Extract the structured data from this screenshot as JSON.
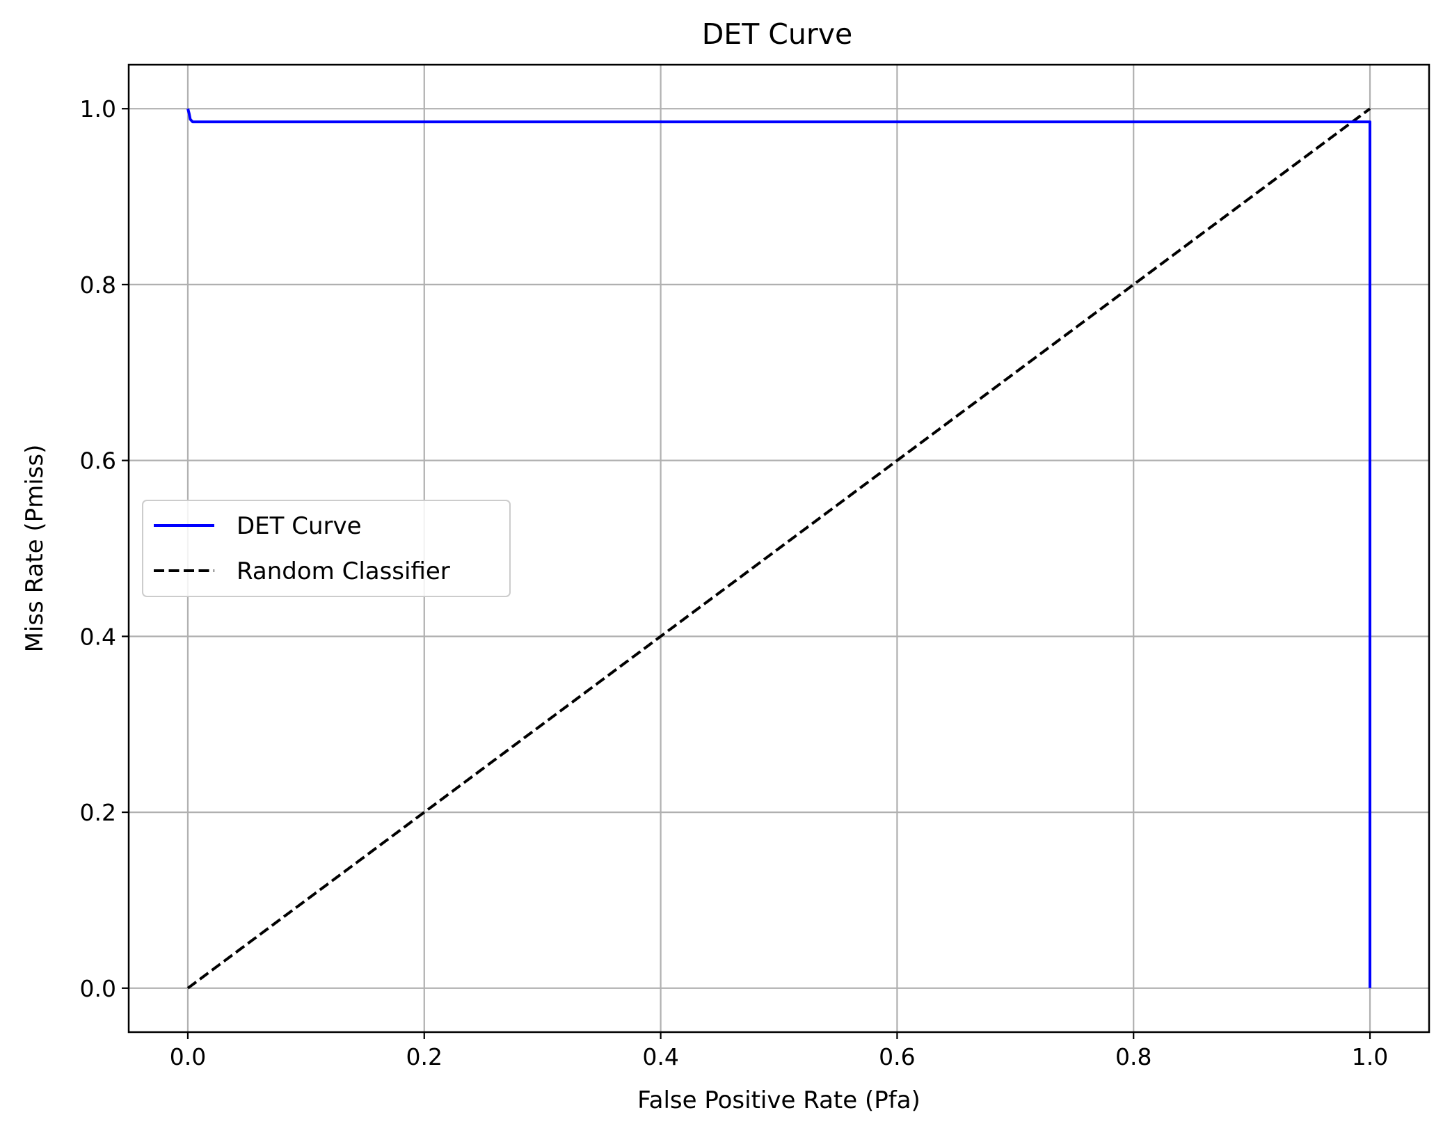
{
  "chart_data": {
    "type": "line",
    "title": "DET Curve",
    "xlabel": "False Positive Rate (Pfa)",
    "ylabel": "Miss Rate (Pmiss)",
    "xlim": [
      -0.05,
      1.05
    ],
    "ylim": [
      -0.05,
      1.05
    ],
    "xticks": [
      0.0,
      0.2,
      0.4,
      0.6,
      0.8,
      1.0
    ],
    "yticks": [
      0.0,
      0.2,
      0.4,
      0.6,
      0.8,
      1.0
    ],
    "xtick_labels": [
      "0.0",
      "0.2",
      "0.4",
      "0.6",
      "0.8",
      "1.0"
    ],
    "ytick_labels": [
      "0.0",
      "0.2",
      "0.4",
      "0.6",
      "0.8",
      "1.0"
    ],
    "grid": true,
    "legend_position": "center-left",
    "series": [
      {
        "name": "DET Curve",
        "color": "#0000ff",
        "style": "solid",
        "x": [
          0.0,
          0.001,
          0.002,
          0.004,
          1.0,
          1.0
        ],
        "y": [
          1.0,
          0.995,
          0.988,
          0.985,
          0.985,
          0.0
        ]
      },
      {
        "name": "Random Classifier",
        "color": "#000000",
        "style": "dashed",
        "x": [
          0.0,
          1.0
        ],
        "y": [
          0.0,
          1.0
        ]
      }
    ]
  }
}
